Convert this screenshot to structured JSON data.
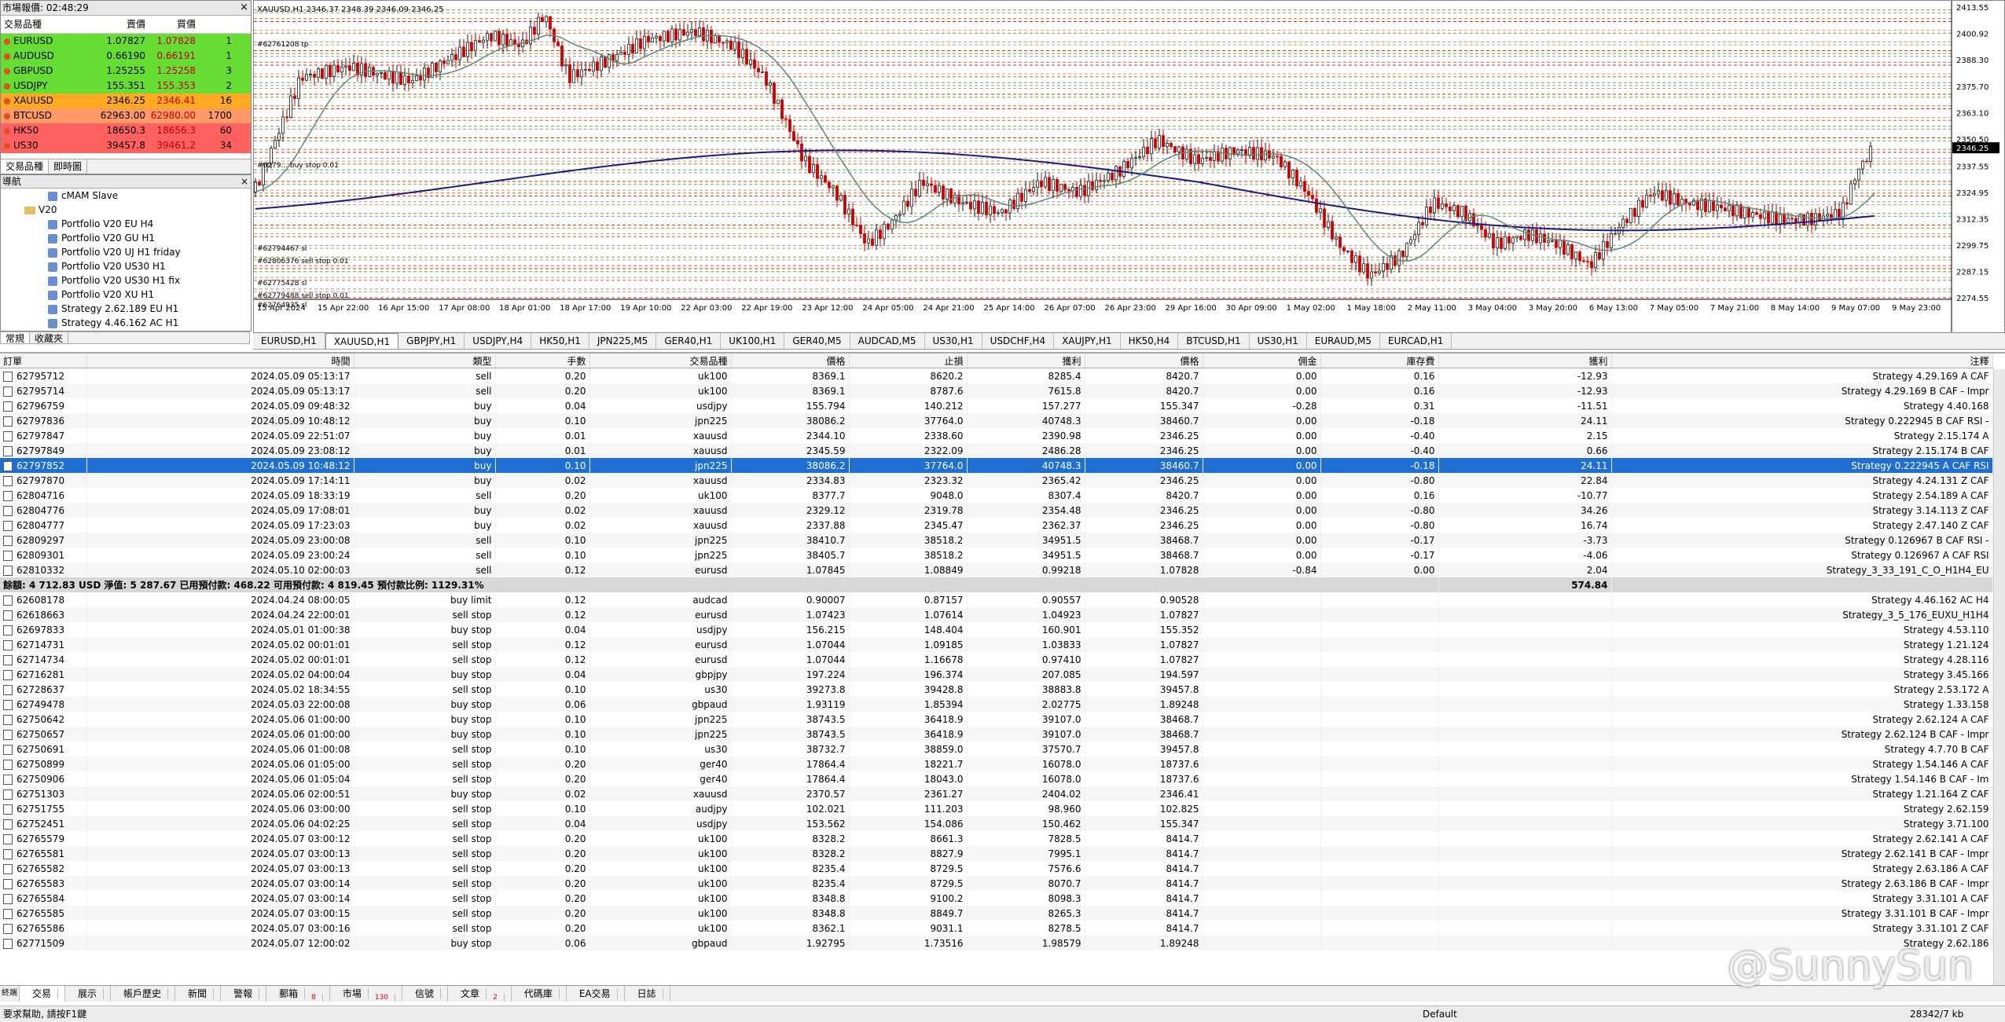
{
  "market_watch": {
    "title": "市場報價: 02:48:29",
    "headers": {
      "symbol": "交易品種",
      "bid": "賣價",
      "ask": "買價",
      "spread": ""
    },
    "rows": [
      {
        "symbol": "EURUSD",
        "bid": "1.07827",
        "ask": "1.07828",
        "spread": "1",
        "color": "#66dd33"
      },
      {
        "symbol": "AUDUSD",
        "bid": "0.66190",
        "ask": "0.66191",
        "spread": "1",
        "color": "#66dd33"
      },
      {
        "symbol": "GBPUSD",
        "bid": "1.25255",
        "ask": "1.25258",
        "spread": "3",
        "color": "#66dd33"
      },
      {
        "symbol": "USDJPY",
        "bid": "155.351",
        "ask": "155.353",
        "spread": "2",
        "color": "#66dd33"
      },
      {
        "symbol": "XAUUSD",
        "bid": "2346.25",
        "ask": "2346.41",
        "spread": "16",
        "color": "#ffaa22"
      },
      {
        "symbol": "BTCUSD",
        "bid": "62963.00",
        "ask": "62980.00",
        "spread": "1700",
        "color": "#ff9966"
      },
      {
        "symbol": "HK50",
        "bid": "18650.3",
        "ask": "18656.3",
        "spread": "60",
        "color": "#ff6060"
      },
      {
        "symbol": "US30",
        "bid": "39457.8",
        "ask": "39461.2",
        "spread": "34",
        "color": "#ff6060"
      }
    ],
    "tabs": [
      "交易品種",
      "即時圖"
    ]
  },
  "navigator": {
    "title": "導航",
    "items": [
      {
        "label": "cMAM Slave",
        "type": "item"
      },
      {
        "label": "V20",
        "type": "folder"
      },
      {
        "label": "Portfolio V20 EU H4",
        "type": "item"
      },
      {
        "label": "Portfolio V20 GU H1",
        "type": "item"
      },
      {
        "label": "Portfolio V20 UJ H1 friday",
        "type": "item"
      },
      {
        "label": "Portfolio V20 US30 H1",
        "type": "item"
      },
      {
        "label": "Portfolio V20 US30 H1 fix",
        "type": "item"
      },
      {
        "label": "Portfolio V20 XU H1",
        "type": "item"
      },
      {
        "label": "Strategy 2.62.189 EU H1",
        "type": "item"
      },
      {
        "label": "Strategy 4.46.162 AC H1",
        "type": "item"
      }
    ],
    "tabs": [
      "常規",
      "收藏夾"
    ]
  },
  "chart": {
    "header": "XAUUSD,H1  2346.37 2348.39 2346.09 2346.25",
    "y_ticks": [
      "2413.55",
      "2400.92",
      "2388.30",
      "2375.70",
      "2363.10",
      "2350.50",
      "2337.55",
      "2324.95",
      "2312.35",
      "2299.75",
      "2287.15",
      "2274.55"
    ],
    "price_label": "2346.25",
    "x_ticks": [
      "15 Apr 2024",
      "15 Apr 22:00",
      "16 Apr 15:00",
      "17 Apr 08:00",
      "18 Apr 01:00",
      "18 Apr 17:00",
      "19 Apr 10:00",
      "22 Apr 03:00",
      "22 Apr 19:00",
      "23 Apr 12:00",
      "24 Apr 05:00",
      "24 Apr 21:00",
      "25 Apr 14:00",
      "26 Apr 07:00",
      "26 Apr 23:00",
      "29 Apr 16:00",
      "30 Apr 09:00",
      "1 May 02:00",
      "1 May 18:00",
      "2 May 11:00",
      "3 May 04:00",
      "3 May 20:00",
      "6 May 13:00",
      "7 May 05:00",
      "7 May 21:00",
      "8 May 14:00",
      "9 May 07:00",
      "9 May 23:00"
    ],
    "order_labels": [
      "#62761208 tp",
      "#62794467 sl",
      "#62806376 sell stop 0.01",
      "#62775428 sl",
      "#62779488 sell stop 0.01",
      "#62764935 sl",
      "#6279... buy stop 0.01"
    ]
  },
  "chart_tabs": [
    "EURUSD,H1",
    "XAUUSD,H1",
    "GBPJPY,H1",
    "USDJPY,H4",
    "HK50,H1",
    "JPN225,M5",
    "GER40,H1",
    "UK100,H1",
    "GER40,M5",
    "AUDCAD,M5",
    "US30,H1",
    "USDCHF,H4",
    "XAUJPY,H1",
    "HK50,H4",
    "BTCUSD,H1",
    "US30,H1",
    "EURAUD,M5",
    "EURCAD,H1"
  ],
  "terminal": {
    "columns": [
      "訂單",
      "時間",
      "類型",
      "手數",
      "交易品種",
      "價格",
      "止損",
      "獲利",
      "價格",
      "佣金",
      "庫存費",
      "獲利",
      "注釋"
    ],
    "open": [
      [
        "62795712",
        "2024.05.09 05:13:17",
        "sell",
        "0.20",
        "uk100",
        "8369.1",
        "8620.2",
        "8285.4",
        "8420.7",
        "0.00",
        "0.16",
        "-12.93",
        "Strategy 4.29.169 A CAF"
      ],
      [
        "62795714",
        "2024.05.09 05:13:17",
        "sell",
        "0.20",
        "uk100",
        "8369.1",
        "8787.6",
        "7615.8",
        "8420.7",
        "0.00",
        "0.16",
        "-12.93",
        "Strategy 4.29.169 B CAF - Impr"
      ],
      [
        "62796759",
        "2024.05.09 09:48:32",
        "buy",
        "0.04",
        "usdjpy",
        "155.794",
        "140.212",
        "157.277",
        "155.347",
        "-0.28",
        "0.31",
        "-11.51",
        "Strategy 4.40.168"
      ],
      [
        "62797836",
        "2024.05.09 10:48:12",
        "buy",
        "0.10",
        "jpn225",
        "38086.2",
        "37764.0",
        "40748.3",
        "38460.7",
        "0.00",
        "-0.18",
        "24.11",
        "Strategy 0.222945 B CAF RSI -"
      ],
      [
        "62797847",
        "2024.05.09 22:51:07",
        "buy",
        "0.01",
        "xauusd",
        "2344.10",
        "2338.60",
        "2390.98",
        "2346.25",
        "0.00",
        "-0.40",
        "2.15",
        "Strategy 2.15.174 A"
      ],
      [
        "62797849",
        "2024.05.09 23:08:12",
        "buy",
        "0.01",
        "xauusd",
        "2345.59",
        "2322.09",
        "2486.28",
        "2346.25",
        "0.00",
        "-0.40",
        "0.66",
        "Strategy 2.15.174 B CAF"
      ],
      [
        "62797852",
        "2024.05.09 10:48:12",
        "buy",
        "0.10",
        "jpn225",
        "38086.2",
        "37764.0",
        "40748.3",
        "38460.7",
        "0.00",
        "-0.18",
        "24.11",
        "Strategy 0.222945 A CAF RSI"
      ],
      [
        "62797870",
        "2024.05.09 17:14:11",
        "buy",
        "0.02",
        "xauusd",
        "2334.83",
        "2323.32",
        "2365.42",
        "2346.25",
        "0.00",
        "-0.80",
        "22.84",
        "Strategy 4.24.131 Z CAF"
      ],
      [
        "62804716",
        "2024.05.09 18:33:19",
        "sell",
        "0.20",
        "uk100",
        "8377.7",
        "9048.0",
        "8307.4",
        "8420.7",
        "0.00",
        "0.16",
        "-10.77",
        "Strategy 2.54.189 A CAF"
      ],
      [
        "62804776",
        "2024.05.09 17:08:01",
        "buy",
        "0.02",
        "xauusd",
        "2329.12",
        "2319.78",
        "2354.48",
        "2346.25",
        "0.00",
        "-0.80",
        "34.26",
        "Strategy 3.14.113 Z CAF"
      ],
      [
        "62804777",
        "2024.05.09 17:23:03",
        "buy",
        "0.02",
        "xauusd",
        "2337.88",
        "2345.47",
        "2362.37",
        "2346.25",
        "0.00",
        "-0.80",
        "16.74",
        "Strategy 2.47.140 Z CAF"
      ],
      [
        "62809297",
        "2024.05.09 23:00:08",
        "sell",
        "0.10",
        "jpn225",
        "38410.7",
        "38518.2",
        "34951.5",
        "38468.7",
        "0.00",
        "-0.17",
        "-3.73",
        "Strategy 0.126967 B CAF RSI -"
      ],
      [
        "62809301",
        "2024.05.09 23:00:24",
        "sell",
        "0.10",
        "jpn225",
        "38405.7",
        "38518.2",
        "34951.5",
        "38468.7",
        "0.00",
        "-0.17",
        "-4.06",
        "Strategy 0.126967 A CAF RSI"
      ],
      [
        "62810332",
        "2024.05.10 02:00:03",
        "sell",
        "0.12",
        "eurusd",
        "1.07845",
        "1.08849",
        "0.99218",
        "1.07828",
        "-0.84",
        "0.00",
        "2.04",
        "Strategy_3_33_191_C_O_H1H4_EU"
      ]
    ],
    "selected_index": 6,
    "summary": "餘額: 4 712.83 USD  淨值: 5 287.67  已用預付款: 468.22  可用預付款: 4 819.45  預付款比例: 1129.31%",
    "summary_profit": "574.84",
    "pending": [
      [
        "62608178",
        "2024.04.24 08:00:05",
        "buy limit",
        "0.12",
        "audcad",
        "0.90007",
        "0.87157",
        "0.90557",
        "0.90528",
        "Strategy 4.46.162 AC H4"
      ],
      [
        "62618663",
        "2024.04.24 22:00:01",
        "sell stop",
        "0.12",
        "eurusd",
        "1.07423",
        "1.07614",
        "1.04923",
        "1.07827",
        "Strategy_3_5_176_EUXU_H1H4"
      ],
      [
        "62697833",
        "2024.05.01 01:00:38",
        "buy stop",
        "0.04",
        "usdjpy",
        "156.215",
        "148.404",
        "160.901",
        "155.352",
        "Strategy 4.53.110"
      ],
      [
        "62714731",
        "2024.05.02 00:01:01",
        "sell stop",
        "0.12",
        "eurusd",
        "1.07044",
        "1.09185",
        "1.03833",
        "1.07827",
        "Strategy 1.21.124"
      ],
      [
        "62714734",
        "2024.05.02 00:01:01",
        "sell stop",
        "0.12",
        "eurusd",
        "1.07044",
        "1.16678",
        "0.97410",
        "1.07827",
        "Strategy 4.28.116"
      ],
      [
        "62716281",
        "2024.05.02 04:00:04",
        "buy stop",
        "0.04",
        "gbpjpy",
        "197.224",
        "196.374",
        "207.085",
        "194.597",
        "Strategy 3.45.166"
      ],
      [
        "62728637",
        "2024.05.02 18:34:55",
        "sell stop",
        "0.10",
        "us30",
        "39273.8",
        "39428.8",
        "38883.8",
        "39457.8",
        "Strategy 2.53.172 A"
      ],
      [
        "62749478",
        "2024.05.03 22:00:08",
        "buy stop",
        "0.06",
        "gbpaud",
        "1.93119",
        "1.85394",
        "2.02775",
        "1.89248",
        "Strategy 1.33.158"
      ],
      [
        "62750642",
        "2024.05.06 01:00:00",
        "buy stop",
        "0.10",
        "jpn225",
        "38743.5",
        "36418.9",
        "39107.0",
        "38468.7",
        "Strategy 2.62.124 A CAF"
      ],
      [
        "62750657",
        "2024.05.06 01:00:00",
        "buy stop",
        "0.10",
        "jpn225",
        "38743.5",
        "36418.9",
        "39107.0",
        "38468.7",
        "Strategy 2.62.124 B CAF - Impr"
      ],
      [
        "62750691",
        "2024.05.06 01:00:08",
        "sell stop",
        "0.10",
        "us30",
        "38732.7",
        "38859.0",
        "37570.7",
        "39457.8",
        "Strategy 4.7.70 B CAF"
      ],
      [
        "62750899",
        "2024.05.06 01:05:00",
        "sell stop",
        "0.20",
        "ger40",
        "17864.4",
        "18221.7",
        "16078.0",
        "18737.6",
        "Strategy 1.54.146 A CAF"
      ],
      [
        "62750906",
        "2024.05.06 01:05:04",
        "sell stop",
        "0.20",
        "ger40",
        "17864.4",
        "18043.0",
        "16078.0",
        "18737.6",
        "Strategy 1.54.146 B CAF - Im"
      ],
      [
        "62751303",
        "2024.05.06 02:00:51",
        "buy stop",
        "0.02",
        "xauusd",
        "2370.57",
        "2361.27",
        "2404.02",
        "2346.41",
        "Strategy 1.21.164 Z CAF"
      ],
      [
        "62751755",
        "2024.05.06 03:00:00",
        "sell stop",
        "0.10",
        "audjpy",
        "102.021",
        "111.203",
        "98.960",
        "102.825",
        "Strategy 2.62.159"
      ],
      [
        "62752451",
        "2024.05.06 04:02:25",
        "sell stop",
        "0.04",
        "usdjpy",
        "153.562",
        "154.086",
        "150.462",
        "155.347",
        "Strategy 3.71.100"
      ],
      [
        "62765579",
        "2024.05.07 03:00:12",
        "sell stop",
        "0.20",
        "uk100",
        "8328.2",
        "8661.3",
        "7828.5",
        "8414.7",
        "Strategy 2.62.141 A CAF"
      ],
      [
        "62765581",
        "2024.05.07 03:00:13",
        "sell stop",
        "0.20",
        "uk100",
        "8328.2",
        "8827.9",
        "7995.1",
        "8414.7",
        "Strategy 2.62.141 B CAF - Impr"
      ],
      [
        "62765582",
        "2024.05.07 03:00:13",
        "sell stop",
        "0.20",
        "uk100",
        "8235.4",
        "8729.5",
        "7576.6",
        "8414.7",
        "Strategy 2.63.186 A CAF"
      ],
      [
        "62765583",
        "2024.05.07 03:00:14",
        "sell stop",
        "0.20",
        "uk100",
        "8235.4",
        "8729.5",
        "8070.7",
        "8414.7",
        "Strategy 2.63.186 B CAF - Impr"
      ],
      [
        "62765584",
        "2024.05.07 03:00:14",
        "sell stop",
        "0.20",
        "uk100",
        "8348.8",
        "9100.2",
        "8098.3",
        "8414.7",
        "Strategy 3.31.101 A CAF"
      ],
      [
        "62765585",
        "2024.05.07 03:00:15",
        "sell stop",
        "0.20",
        "uk100",
        "8348.8",
        "8849.7",
        "8265.3",
        "8414.7",
        "Strategy 3.31.101 B CAF - Impr"
      ],
      [
        "62765586",
        "2024.05.07 03:00:16",
        "sell stop",
        "0.20",
        "uk100",
        "8362.1",
        "9031.1",
        "8278.5",
        "8414.7",
        "Strategy 3.31.101 Z CAF"
      ],
      [
        "62771509",
        "2024.05.07 12:00:02",
        "buy stop",
        "0.06",
        "gbpaud",
        "1.92795",
        "1.73516",
        "1.98579",
        "1.89248",
        "Strategy 2.62.186"
      ]
    ]
  },
  "bottom_tabs": [
    {
      "label": "交易",
      "count": ""
    },
    {
      "label": "展示",
      "count": ""
    },
    {
      "label": "帳戶歷史",
      "count": ""
    },
    {
      "label": "新聞",
      "count": ""
    },
    {
      "label": "警報",
      "count": ""
    },
    {
      "label": "郵箱",
      "count": "8"
    },
    {
      "label": "市場",
      "count": "130"
    },
    {
      "label": "信號",
      "count": ""
    },
    {
      "label": "文章",
      "count": "2"
    },
    {
      "label": "代碼庫",
      "count": ""
    },
    {
      "label": "EA交易",
      "count": ""
    },
    {
      "label": "日誌",
      "count": ""
    }
  ],
  "bottom_side_label": "終端",
  "status": {
    "help": "要求幫助, 請按F1鍵",
    "profile": "Default",
    "traffic": "28342/7 kb"
  },
  "watermark": "@SunnySun"
}
